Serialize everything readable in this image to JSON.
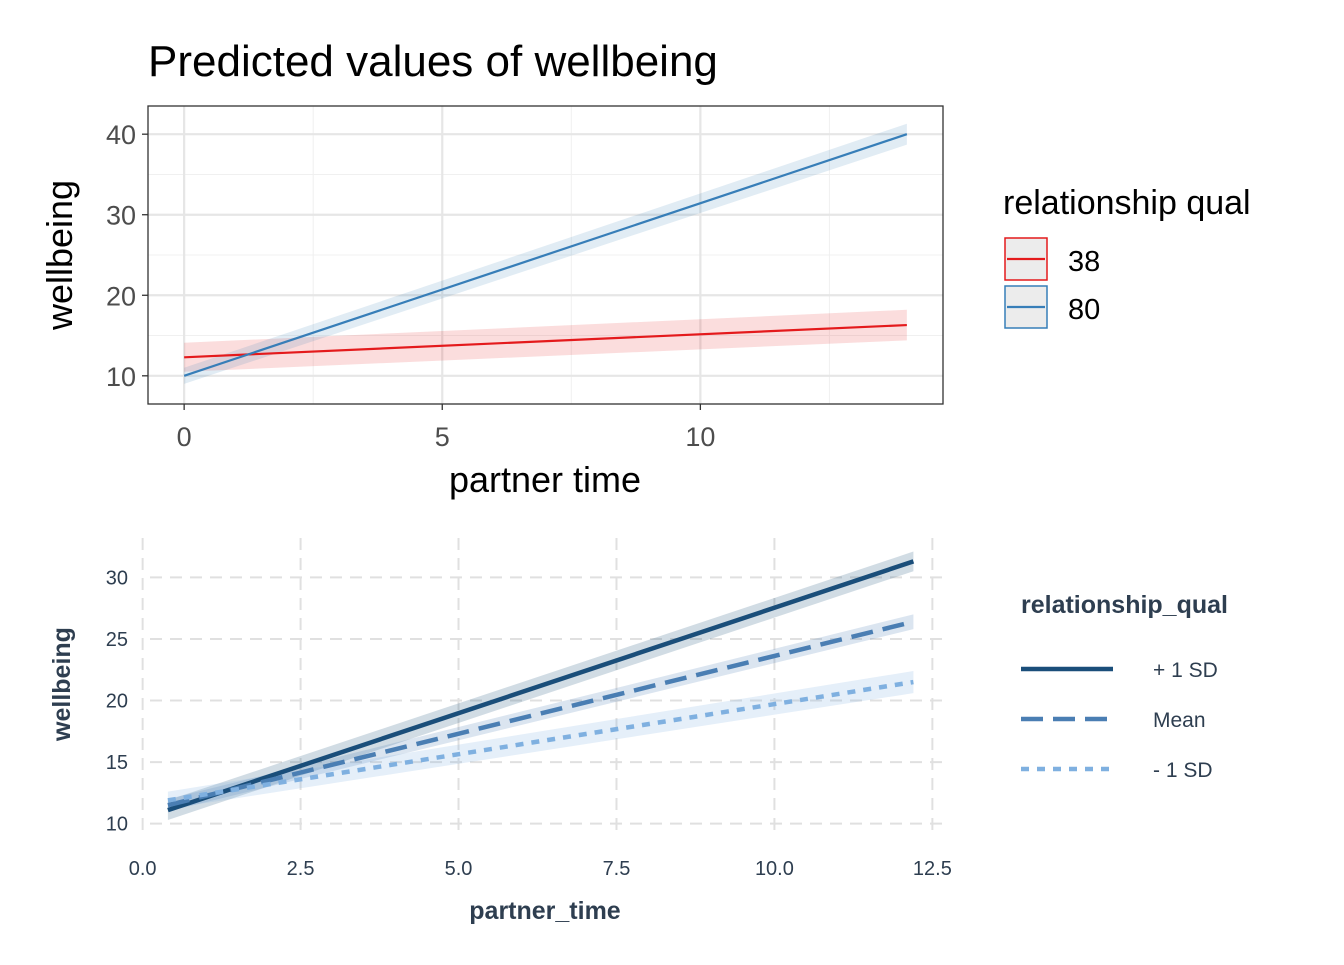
{
  "chart_data": [
    {
      "type": "line",
      "title": "Predicted values of wellbeing",
      "xlabel": "partner time",
      "ylabel": "wellbeing",
      "xlim": [
        -0.7,
        14.7
      ],
      "ylim": [
        6.5,
        43.5
      ],
      "x_ticks": [
        0,
        5,
        10
      ],
      "x_tick_labels": [
        "0",
        "5",
        "10"
      ],
      "y_ticks": [
        10,
        20,
        30,
        40
      ],
      "y_tick_labels": [
        "10",
        "20",
        "30",
        "40"
      ],
      "grid": true,
      "legend": {
        "title": "relationship qual",
        "position": "right",
        "entries": [
          "38",
          "80"
        ]
      },
      "series": [
        {
          "name": "38",
          "color": "#e41a1c",
          "x": [
            0,
            14
          ],
          "y": [
            12.3,
            16.3
          ],
          "ci_low": [
            10.5,
            14.4
          ],
          "ci_high": [
            14.1,
            18.2
          ]
        },
        {
          "name": "80",
          "color": "#377eb8",
          "x": [
            0,
            14
          ],
          "y": [
            10.0,
            40.0
          ],
          "ci_low": [
            9.0,
            38.7
          ],
          "ci_high": [
            11.0,
            41.3
          ]
        }
      ]
    },
    {
      "type": "line",
      "title": "",
      "xlabel": "partner_time",
      "ylabel": "wellbeing",
      "xlim": [
        -0.2,
        12.7
      ],
      "ylim": [
        9.0,
        33.2
      ],
      "x_ticks": [
        0.0,
        2.5,
        5.0,
        7.5,
        10.0,
        12.5
      ],
      "x_tick_labels": [
        "0.0",
        "2.5",
        "5.0",
        "7.5",
        "10.0",
        "12.5"
      ],
      "y_ticks": [
        10,
        15,
        20,
        25,
        30
      ],
      "y_tick_labels": [
        "10",
        "15",
        "20",
        "25",
        "30"
      ],
      "grid": true,
      "legend": {
        "title": "relationship_qual",
        "position": "right",
        "entries": [
          "+ 1 SD",
          "Mean",
          "- 1 SD"
        ]
      },
      "series": [
        {
          "name": "+ 1 SD",
          "color": "#1a4e7a",
          "dash": "solid",
          "x": [
            0.4,
            12.2
          ],
          "y": [
            11.1,
            31.3
          ],
          "ci_low": [
            10.3,
            30.5
          ],
          "ci_high": [
            11.9,
            32.1
          ]
        },
        {
          "name": "Mean",
          "color": "#4a7eb3",
          "dash": "dashed",
          "x": [
            0.4,
            12.2
          ],
          "y": [
            11.5,
            26.4
          ],
          "ci_low": [
            11.0,
            25.8
          ],
          "ci_high": [
            12.0,
            27.0
          ]
        },
        {
          "name": "- 1 SD",
          "color": "#7fb0e0",
          "dash": "dotted",
          "x": [
            0.4,
            12.2
          ],
          "y": [
            11.9,
            21.5
          ],
          "ci_low": [
            11.2,
            20.6
          ],
          "ci_high": [
            12.6,
            22.4
          ]
        }
      ]
    }
  ]
}
